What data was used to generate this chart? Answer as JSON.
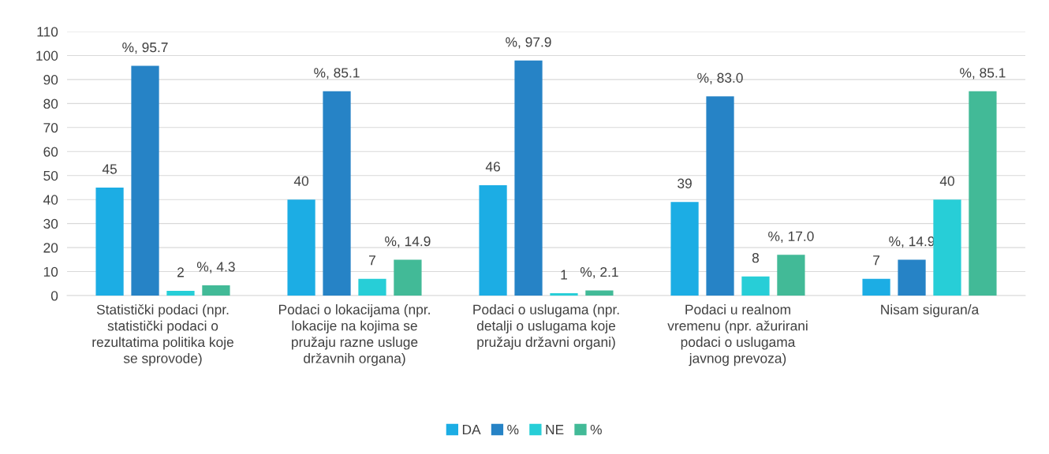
{
  "chart_data": {
    "type": "bar",
    "categories": [
      "Statistički podaci (npr.\nstatistički podaci o\nrezultatima politika koje\nse sprovode)",
      "Podaci o lokacijama (npr.\nlokacije na kojima se\npružaju razne usluge\ndržavnih organa)",
      "Podaci o uslugama (npr.\ndetalji o uslugama koje\npružaju državni organi)",
      "Podaci u realnom\nvremenu (npr. ažurirani\npodaci o uslugama\njavnog prevoza)",
      "Nisam siguran/a"
    ],
    "series": [
      {
        "name": "DA",
        "color": "#1cade4",
        "values": [
          45,
          40,
          46,
          39,
          7
        ],
        "value_labels": [
          "45",
          "40",
          "46",
          "39",
          "7"
        ]
      },
      {
        "name": "%",
        "color": "#2683c6",
        "values": [
          95.7,
          85.1,
          97.9,
          83.0,
          14.9
        ],
        "value_labels": [
          "%, 95.7",
          "%, 85.1",
          "%, 97.9",
          "%, 83.0",
          "%, 14.9"
        ]
      },
      {
        "name": "NE",
        "color": "#27ced7",
        "values": [
          2,
          7,
          1,
          8,
          40
        ],
        "value_labels": [
          "2",
          "7",
          "1",
          "8",
          "40"
        ]
      },
      {
        "name": "%",
        "color": "#42ba97",
        "values": [
          4.3,
          14.9,
          2.1,
          17.0,
          85.1
        ],
        "value_labels": [
          "%, 4.3",
          "%, 14.9",
          "%, 2.1",
          "%, 17.0",
          "%, 85.1"
        ]
      }
    ],
    "ylim": [
      0,
      110
    ],
    "yticks": [
      0,
      10,
      20,
      30,
      40,
      50,
      60,
      70,
      80,
      90,
      100,
      110
    ],
    "grid": "y",
    "legend": "bottom"
  }
}
